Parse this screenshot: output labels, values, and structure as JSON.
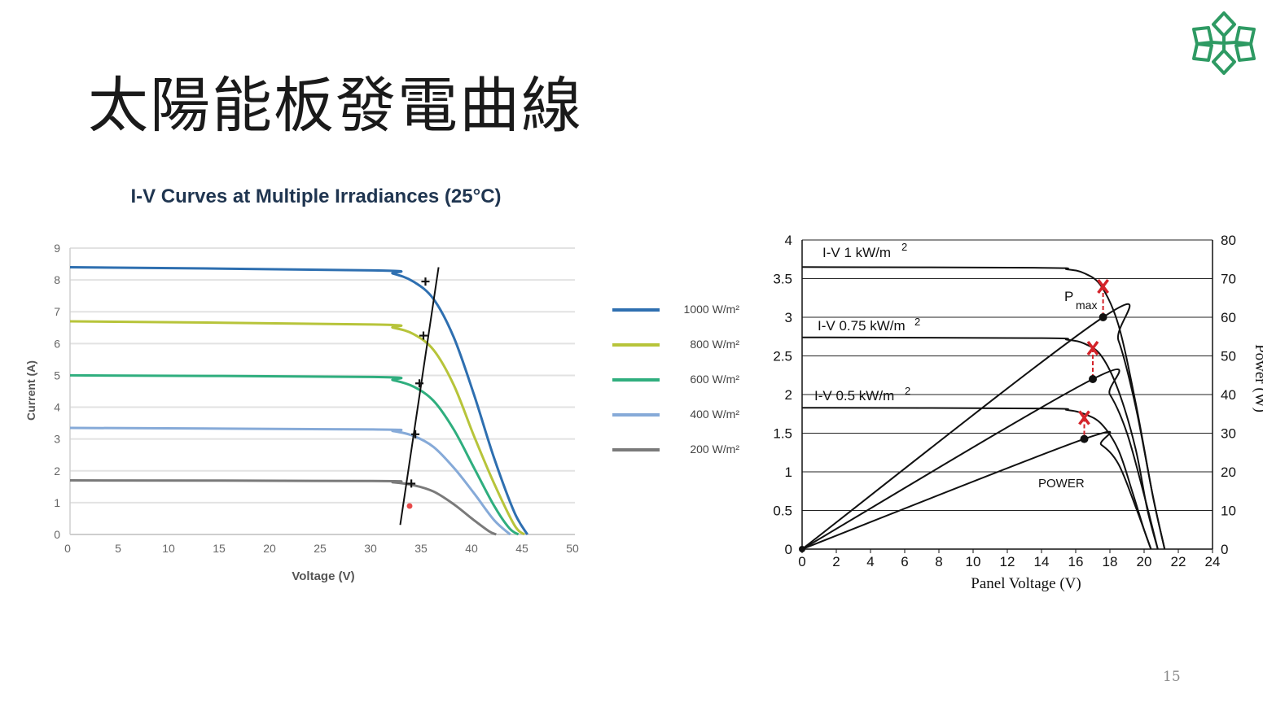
{
  "slide": {
    "title": "太陽能板發電曲線",
    "page_number": "15"
  },
  "logo": {
    "icon": "snowflake-logo-icon",
    "color": "#2e9a63"
  },
  "chart_data": [
    {
      "type": "line",
      "title": "I-V Curves at Multiple Irradiances (25°C)",
      "xlabel": "Voltage (V)",
      "ylabel": "Current (A)",
      "xlim": [
        0,
        50
      ],
      "ylim": [
        0,
        9
      ],
      "xticks": [
        "0",
        "5",
        "10",
        "15",
        "20",
        "25",
        "30",
        "35",
        "40",
        "45",
        "50"
      ],
      "yticks": [
        "0",
        "1",
        "2",
        "3",
        "4",
        "5",
        "6",
        "7",
        "8",
        "9"
      ],
      "grid": "horizontal",
      "legend_position": "right",
      "series": [
        {
          "name": "1000 W/m²",
          "color": "#2e6fb0",
          "x": [
            0,
            30,
            32,
            34,
            36,
            38,
            40,
            42,
            44,
            45.3
          ],
          "y": [
            8.4,
            8.3,
            8.2,
            7.95,
            7.4,
            6.2,
            4.4,
            2.4,
            0.7,
            0
          ]
        },
        {
          "name": "800 W/m²",
          "color": "#b7c43a",
          "x": [
            0,
            30,
            32,
            34,
            36,
            38,
            40,
            42,
            44,
            45
          ],
          "y": [
            6.7,
            6.6,
            6.5,
            6.3,
            5.8,
            4.7,
            3.1,
            1.6,
            0.3,
            0
          ]
        },
        {
          "name": "600 W/m²",
          "color": "#2fae7e",
          "x": [
            0,
            30,
            32,
            34,
            36,
            38,
            40,
            42,
            43.5,
            44.4
          ],
          "y": [
            5.0,
            4.95,
            4.85,
            4.65,
            4.2,
            3.3,
            2.1,
            0.9,
            0.2,
            0
          ]
        },
        {
          "name": "400 W/m²",
          "color": "#86aad8",
          "x": [
            0,
            30,
            32,
            34,
            36,
            38,
            40,
            42,
            43.6
          ],
          "y": [
            3.35,
            3.3,
            3.25,
            3.1,
            2.75,
            2.1,
            1.3,
            0.45,
            0
          ]
        },
        {
          "name": "200 W/m²",
          "color": "#7a7a7a",
          "x": [
            0,
            30,
            32,
            34,
            36,
            38,
            40,
            41.5,
            42.2
          ],
          "y": [
            1.7,
            1.68,
            1.64,
            1.55,
            1.35,
            0.95,
            0.45,
            0.1,
            0
          ]
        }
      ],
      "mpp_line": {
        "x": [
          32.7,
          36.5
        ],
        "y": [
          0.3,
          8.4
        ]
      },
      "mpp_points": {
        "x": [
          35.2,
          35.0,
          34.6,
          34.2,
          33.8
        ],
        "y": [
          7.95,
          6.25,
          4.75,
          3.15,
          1.6
        ]
      }
    },
    {
      "type": "line",
      "xlabel": "Panel Voltage (V)",
      "ylabel_right": "Power (W)",
      "xlim": [
        0,
        24
      ],
      "ylim": [
        0,
        4
      ],
      "y2lim": [
        0,
        80
      ],
      "xticks": [
        "0",
        "2",
        "4",
        "6",
        "8",
        "10",
        "12",
        "14",
        "16",
        "18",
        "20",
        "22",
        "24"
      ],
      "yticks": [
        "0",
        "0.5",
        "1",
        "1.5",
        "2",
        "2.5",
        "3",
        "3.5",
        "4"
      ],
      "y2ticks": [
        "0",
        "10",
        "20",
        "30",
        "40",
        "50",
        "60",
        "70",
        "80"
      ],
      "grid": "horizontal",
      "annotations": [
        "I-V 1 kW/m",
        "I-V 0.75 kW/m",
        "I-V 0.5 kW/m",
        "2",
        "2",
        "2",
        "P",
        "max",
        "POWER"
      ],
      "series": [
        {
          "name": "I-V 1 kW/m²",
          "axis": "current",
          "x": [
            0,
            14,
            15.5,
            16.5,
            17.5,
            18.5,
            19.5,
            20.5,
            21.2
          ],
          "y": [
            3.65,
            3.64,
            3.62,
            3.57,
            3.4,
            2.9,
            1.9,
            0.7,
            0
          ]
        },
        {
          "name": "I-V 0.75 kW/m²",
          "axis": "current",
          "x": [
            0,
            14,
            15.5,
            16.5,
            17.5,
            18.5,
            19.5,
            20.2,
            20.8
          ],
          "y": [
            2.74,
            2.73,
            2.71,
            2.66,
            2.5,
            2.05,
            1.3,
            0.5,
            0
          ]
        },
        {
          "name": "I-V 0.5 kW/m²",
          "axis": "current",
          "x": [
            0,
            14,
            15.5,
            16.5,
            17.5,
            18.5,
            19.3,
            20.0,
            20.4
          ],
          "y": [
            1.83,
            1.82,
            1.8,
            1.75,
            1.62,
            1.28,
            0.75,
            0.25,
            0
          ]
        },
        {
          "name": "POWER 1 kW/m²",
          "axis": "power",
          "x": [
            0,
            17.6,
            18.5,
            19.5,
            20.5,
            21.2
          ],
          "y": [
            0,
            60,
            54,
            37,
            14,
            0
          ]
        },
        {
          "name": "POWER 0.75 kW/m²",
          "axis": "power",
          "x": [
            0,
            17.0,
            18.0,
            19.0,
            20.0,
            20.8
          ],
          "y": [
            0,
            44,
            40,
            30,
            14,
            0
          ]
        },
        {
          "name": "POWER 0.5 kW/m²",
          "axis": "power",
          "x": [
            0,
            16.5,
            17.5,
            18.5,
            19.5,
            20.4
          ],
          "y": [
            0,
            28.5,
            27,
            22,
            11,
            0
          ]
        }
      ],
      "pmax_markers": {
        "x": [
          17.6,
          17.0,
          16.5
        ],
        "y": [
          3.4,
          2.6,
          1.7
        ],
        "color": "#d4232a"
      },
      "power_peaks": {
        "x": [
          17.6,
          17.0,
          16.5
        ],
        "y": [
          60,
          44,
          28.5
        ]
      }
    }
  ]
}
